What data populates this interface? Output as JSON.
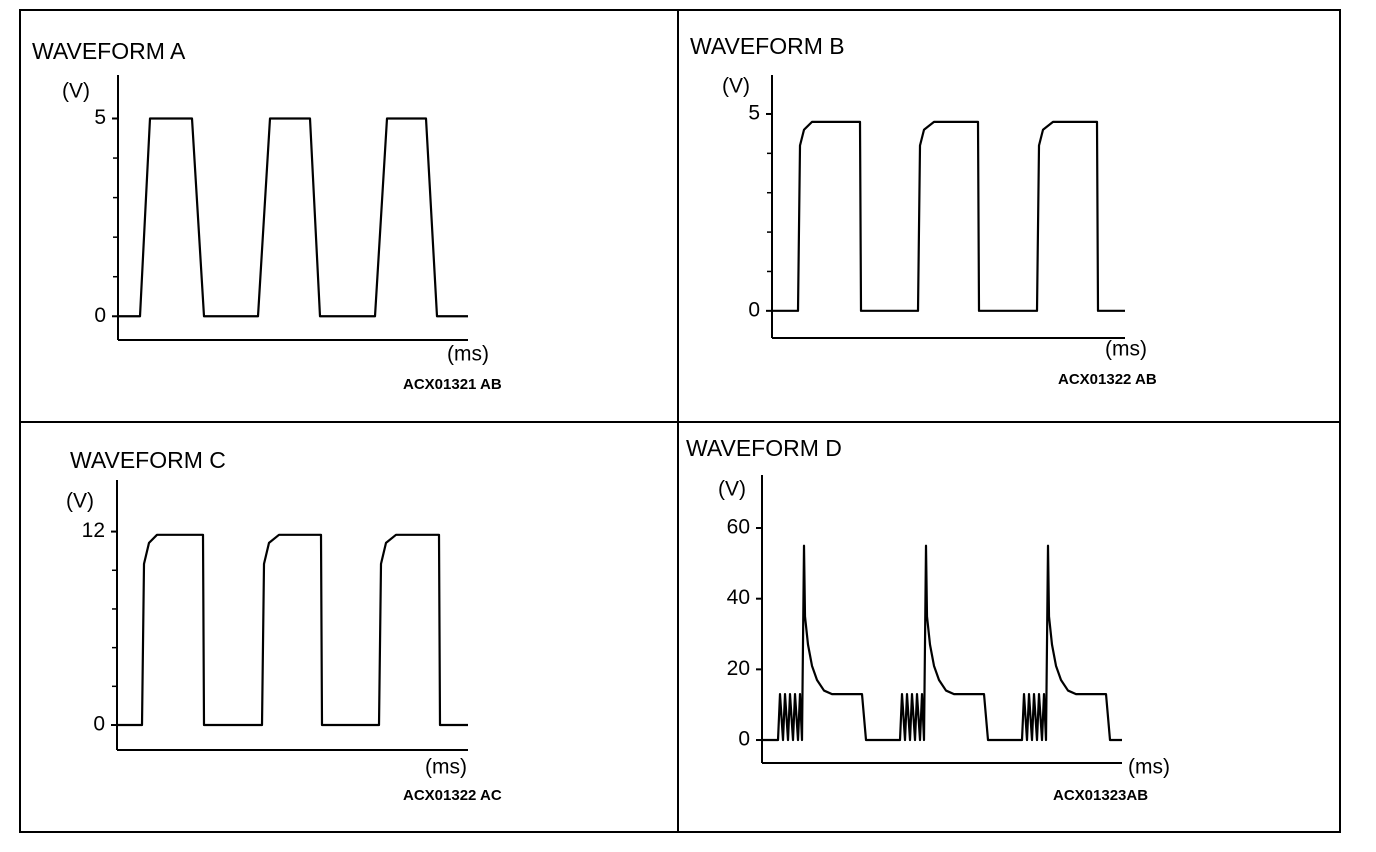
{
  "chart_data": [
    {
      "type": "line",
      "title": "WAVEFORM A",
      "y_label": "(V)",
      "x_label": "(ms)",
      "code": "ACX01321 AB",
      "color": "#000000",
      "x": [
        0,
        22,
        32,
        74,
        86,
        140,
        152,
        192,
        202,
        257,
        269,
        308,
        319,
        350
      ],
      "values": [
        0,
        0,
        5,
        5,
        0,
        0,
        5,
        5,
        0,
        0,
        5,
        5,
        0,
        0
      ],
      "xlim": [
        0,
        350
      ],
      "ylim": [
        -0.6,
        6.1
      ],
      "yticks": [
        0,
        5
      ],
      "minor_yticks": [
        1,
        2,
        3,
        4
      ]
    },
    {
      "type": "line",
      "title": "WAVEFORM B",
      "y_label": "(V)",
      "x_label": "(ms)",
      "code": "ACX01322 AB",
      "color": "#000000",
      "x": [
        0,
        26,
        28,
        32,
        40,
        88,
        89,
        146,
        148,
        152,
        162,
        206,
        207,
        265,
        267,
        271,
        281,
        325,
        326,
        353
      ],
      "values": [
        0,
        0,
        4.2,
        4.6,
        4.8,
        4.8,
        0,
        0,
        4.2,
        4.6,
        4.8,
        4.8,
        0,
        0,
        4.2,
        4.6,
        4.8,
        4.8,
        0,
        0
      ],
      "xlim": [
        0,
        353
      ],
      "ylim": [
        -0.69,
        5.99
      ],
      "yticks": [
        0,
        5
      ],
      "minor_yticks": [
        1,
        2,
        3,
        4
      ]
    },
    {
      "type": "line",
      "title": "WAVEFORM C",
      "y_label": "(V)",
      "x_label": "(ms)",
      "code": "ACX01322 AC",
      "color": "#000000",
      "x": [
        0,
        25,
        27,
        32,
        40,
        86,
        87,
        145,
        147,
        152,
        162,
        204,
        205,
        262,
        264,
        269,
        279,
        322,
        323,
        351
      ],
      "values": [
        0,
        0,
        10,
        11.3,
        11.8,
        11.8,
        0,
        0,
        10,
        11.3,
        11.8,
        11.8,
        0,
        0,
        10,
        11.3,
        11.8,
        11.8,
        0,
        0
      ],
      "xlim": [
        0,
        351
      ],
      "ylim": [
        -1.55,
        15.2
      ],
      "yticks": [
        0,
        12
      ],
      "minor_yticks": [
        2.4,
        4.8,
        7.2,
        9.6
      ]
    },
    {
      "type": "line",
      "title": "WAVEFORM D",
      "y_label": "(V)",
      "x_label": "(ms)",
      "code": "ACX01323AB",
      "color": "#000000",
      "x": [
        0,
        16,
        18,
        21,
        23,
        26,
        28,
        31,
        33,
        36,
        38,
        40,
        42,
        43,
        46,
        50,
        55,
        62,
        70,
        100,
        104,
        138,
        140,
        143,
        145,
        148,
        150,
        153,
        155,
        158,
        160,
        162,
        164,
        165,
        168,
        172,
        177,
        184,
        192,
        222,
        226,
        260,
        262,
        265,
        267,
        270,
        272,
        275,
        277,
        280,
        282,
        284,
        286,
        287,
        290,
        294,
        299,
        306,
        314,
        344,
        348,
        360
      ],
      "values": [
        0,
        0,
        13,
        0,
        13,
        0,
        13,
        0,
        13,
        0,
        13,
        0,
        55,
        35,
        27,
        21,
        17,
        14,
        13,
        13,
        0,
        0,
        13,
        0,
        13,
        0,
        13,
        0,
        13,
        0,
        13,
        0,
        55,
        35,
        27,
        21,
        17,
        14,
        13,
        13,
        0,
        0,
        13,
        0,
        13,
        0,
        13,
        0,
        13,
        0,
        13,
        0,
        55,
        35,
        27,
        21,
        17,
        14,
        13,
        13,
        0,
        0
      ],
      "xlim": [
        0,
        360
      ],
      "ylim": [
        -6.5,
        75
      ],
      "yticks": [
        0,
        20,
        40,
        60
      ]
    }
  ]
}
